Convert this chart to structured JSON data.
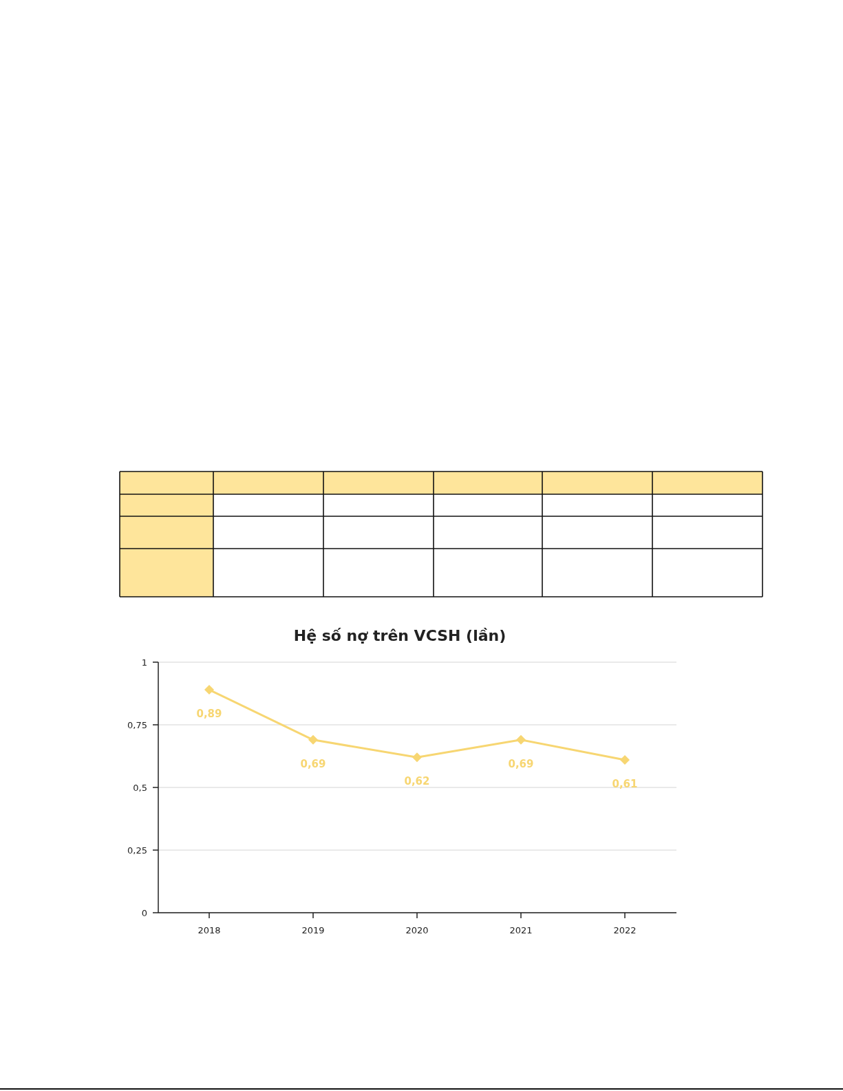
{
  "chart_data": {
    "type": "line",
    "title": "Hệ số nợ trên VCSH (lần)",
    "categories": [
      "2018",
      "2019",
      "2020",
      "2021",
      "2022"
    ],
    "series": [
      {
        "color": "#f7d672",
        "values": [
          0.89,
          0.69,
          0.62,
          0.69,
          0.61
        ],
        "value_labels": [
          "0,89",
          "0,69",
          "0,62",
          "0,69",
          "0,61"
        ]
      }
    ],
    "ylim": [
      0,
      1
    ],
    "yticks": [
      0,
      {
        "value": 0.25,
        "label": "0,25"
      },
      {
        "value": 0.5,
        "label": "0,5"
      },
      {
        "value": 0.75,
        "label": "0,75"
      },
      1
    ],
    "grid": "y",
    "marker": "diamond",
    "line_style": "solid"
  }
}
